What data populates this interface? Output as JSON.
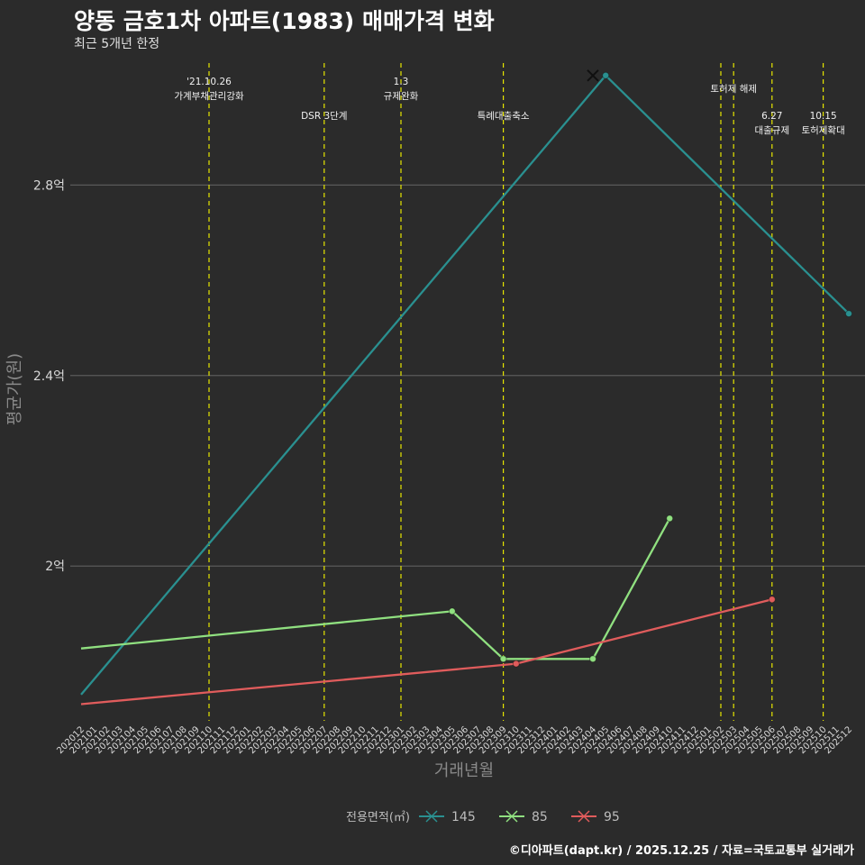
{
  "header": {
    "title": "양동 금호1차 아파트(1983) 매매가격 변화",
    "subtitle": "최근 5개년 한정",
    "caption": "©디아파트(dapt.kr) / 2025.12.25 / 자료=국토교통부 실거래가"
  },
  "colors": {
    "background": "#2b2b2b",
    "grid": "#5a5a5a",
    "event_line": "#e6e600",
    "s145": "#2a9090",
    "s85": "#90e080",
    "s95": "#e05c5c"
  },
  "chart_data": {
    "type": "line",
    "xlabel": "거래년월",
    "ylabel": "평균가(원)",
    "ylim": [
      1.675,
      3.075
    ],
    "yticks": [
      {
        "value": 2.0,
        "label": "2억"
      },
      {
        "value": 2.4,
        "label": "2.4억"
      },
      {
        "value": 2.8,
        "label": "2.8억"
      }
    ],
    "categories": [
      "202012",
      "202101",
      "202102",
      "202103",
      "202104",
      "202105",
      "202106",
      "202107",
      "202108",
      "202109",
      "202110",
      "202111",
      "202112",
      "202201",
      "202202",
      "202203",
      "202204",
      "202205",
      "202206",
      "202207",
      "202208",
      "202209",
      "202210",
      "202211",
      "202212",
      "202301",
      "202302",
      "202303",
      "202304",
      "202305",
      "202306",
      "202307",
      "202308",
      "202309",
      "202310",
      "202311",
      "202312",
      "202401",
      "202402",
      "202403",
      "202404",
      "202405",
      "202406",
      "202407",
      "202408",
      "202409",
      "202410",
      "202411",
      "202412",
      "202501",
      "202502",
      "202503",
      "202504",
      "202505",
      "202506",
      "202507",
      "202508",
      "202509",
      "202510",
      "202511",
      "202512"
    ],
    "legend": {
      "title": "전용면적(㎡)",
      "position": "bottom"
    },
    "series": [
      {
        "name": "145",
        "color": "#2a9090",
        "points": [
          {
            "x": "202012",
            "y": 1.73
          },
          {
            "x": "202405",
            "y": 3.03
          },
          {
            "x": "202512",
            "y": 2.53
          }
        ],
        "markers": [
          {
            "x": "202512",
            "y": 2.53,
            "shape": "circle"
          },
          {
            "x": "202405",
            "y": 3.03,
            "shape": "circle"
          },
          {
            "x": "202404",
            "y": 3.03,
            "shape": "x"
          }
        ]
      },
      {
        "name": "85",
        "color": "#90e080",
        "points": [
          {
            "x": "202012",
            "y": 1.827
          },
          {
            "x": "202305",
            "y": 1.905
          },
          {
            "x": "202309",
            "y": 1.805
          },
          {
            "x": "202404",
            "y": 1.805
          },
          {
            "x": "202410",
            "y": 2.1
          }
        ],
        "markers": [
          {
            "x": "202305",
            "y": 1.905,
            "shape": "circle"
          },
          {
            "x": "202309",
            "y": 1.805,
            "shape": "circle"
          },
          {
            "x": "202404",
            "y": 1.805,
            "shape": "circle"
          },
          {
            "x": "202410",
            "y": 2.1,
            "shape": "circle"
          }
        ]
      },
      {
        "name": "95",
        "color": "#e05c5c",
        "points": [
          {
            "x": "202012",
            "y": 1.71
          },
          {
            "x": "202310",
            "y": 1.795
          },
          {
            "x": "202506",
            "y": 1.93
          }
        ],
        "markers": [
          {
            "x": "202310",
            "y": 1.795,
            "shape": "circle"
          },
          {
            "x": "202506",
            "y": 1.93,
            "shape": "circle"
          }
        ]
      }
    ],
    "events": [
      {
        "x": "202110",
        "lines": [
          "'21.10.26",
          "가계부채관리강화"
        ],
        "level": "high"
      },
      {
        "x": "202207",
        "lines": [
          "DSR 3단계"
        ],
        "level": "low"
      },
      {
        "x": "202301",
        "lines": [
          "1.3",
          "규제완화"
        ],
        "level": "high"
      },
      {
        "x": "202309",
        "lines": [
          "특례대출축소"
        ],
        "level": "low"
      },
      {
        "x": "202502",
        "lines": [],
        "level": "none"
      },
      {
        "x": "202503",
        "lines": [
          "토허제 해제"
        ],
        "level": "top",
        "anchor_x": "202502.5"
      },
      {
        "x": "202506",
        "lines": [
          "6.27",
          "대출규제"
        ],
        "level": "low"
      },
      {
        "x": "202510",
        "lines": [
          "10.15",
          "토허제확대"
        ],
        "level": "low"
      }
    ]
  }
}
